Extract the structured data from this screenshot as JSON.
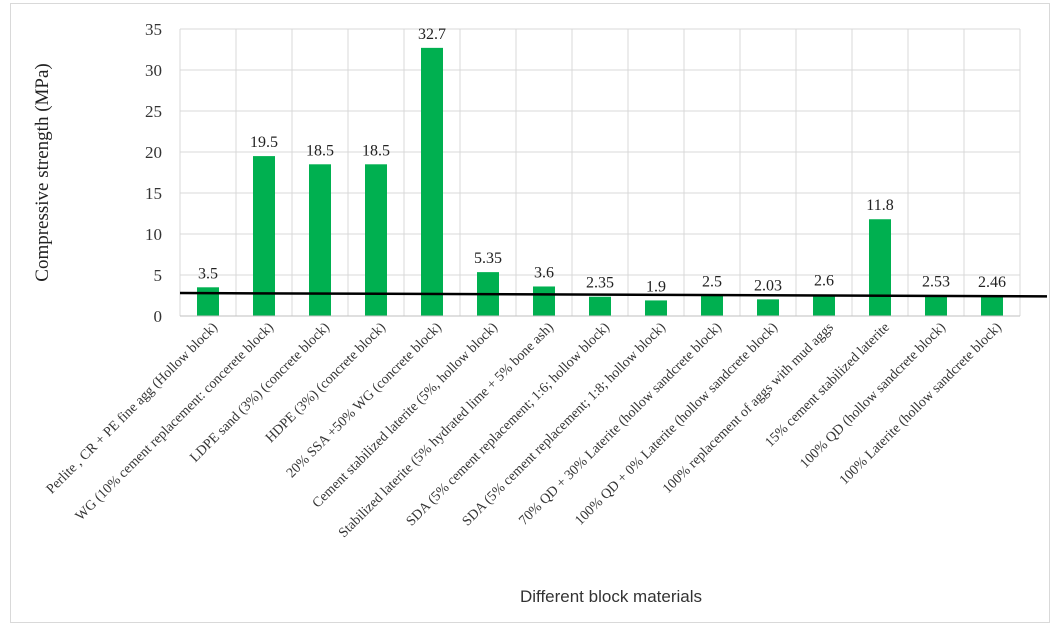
{
  "chart_data": {
    "type": "bar",
    "title": "",
    "xlabel": "Different block materials",
    "ylabel": "Compressive strength  (MPa)",
    "ylim": [
      0,
      35
    ],
    "yticks": [
      0,
      5,
      10,
      15,
      20,
      25,
      30,
      35
    ],
    "grid": true,
    "legend": "none",
    "bar_color": "#00b050",
    "reference_line": {
      "y_start": 2.8,
      "y_end": 2.4,
      "color": "#000000"
    },
    "categories": [
      "Perlite , CR + PE fine agg (Hollow block)",
      "WG (10% cement replacement: concerete block)",
      "LDPE sand (3%) (concrete block)",
      "HDPE (3%) (concrete block)",
      "20% SSA +50% WG (concrete block)",
      "Cement stabilized laterite (5%, hollow block)",
      "Stabilized laterite (5% hydrated lime + 5% bone ash)",
      "SDA (5% cement replacement; 1:6; hollow block)",
      "SDA (5% cement replacement; 1:8; hollow block)",
      "70% QD + 30% Laterite (hollow sandcrete block)",
      "100% QD + 0% Laterite (hollow sandcrete block)",
      "100% replacement of aggs with mud aggs",
      "15% cement stabilized laterite",
      "100% QD (hollow sandcrete block)",
      "100% Laterite (hollow sandcrete block)"
    ],
    "values": [
      3.5,
      19.5,
      18.5,
      18.5,
      32.7,
      5.35,
      3.6,
      2.35,
      1.9,
      2.5,
      2.03,
      2.6,
      11.8,
      2.53,
      2.46
    ],
    "data_labels": [
      "3.5",
      "19.5",
      "18.5",
      "18.5",
      "32.7",
      "5.35",
      "3.6",
      "2.35",
      "1.9",
      "2.5",
      "2.03",
      "2.6",
      "11.8",
      "2.53",
      "2.46"
    ]
  }
}
